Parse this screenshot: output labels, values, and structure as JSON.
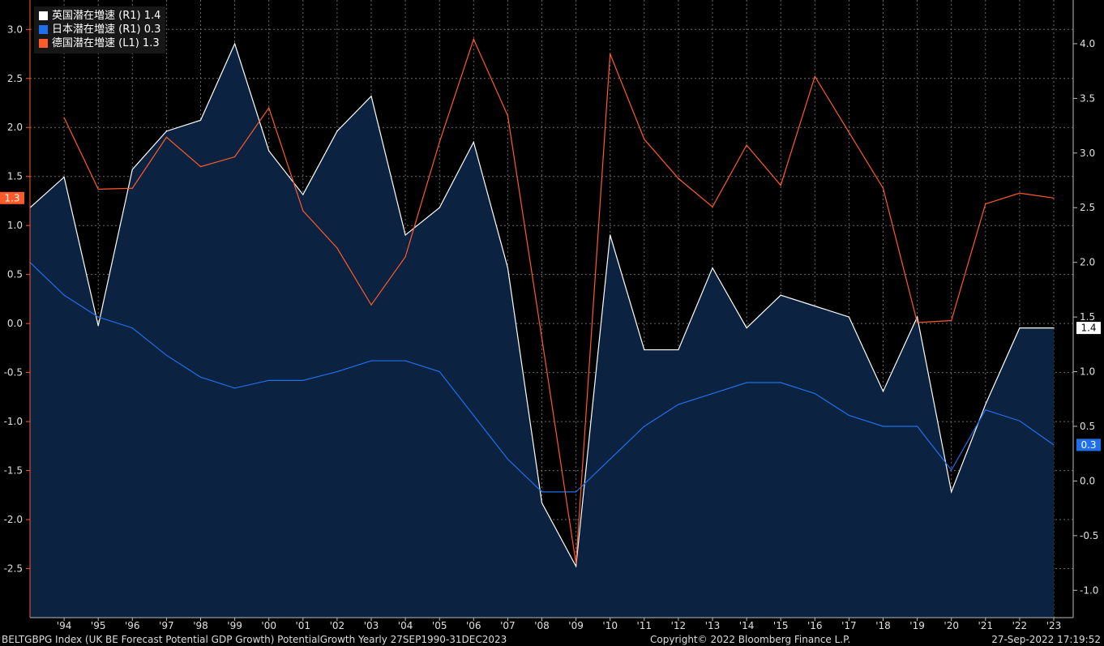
{
  "chart_data": {
    "type": "line",
    "categories": [
      "'94",
      "'95",
      "'96",
      "'97",
      "'98",
      "'99",
      "'00",
      "'01",
      "'02",
      "'03",
      "'04",
      "'05",
      "'06",
      "'07",
      "'08",
      "'09",
      "'10",
      "'11",
      "'12",
      "'13",
      "'14",
      "'15",
      "'16",
      "'17",
      "'18",
      "'19",
      "'20",
      "'21",
      "'22",
      "'23"
    ],
    "left_axis": {
      "ticks": [
        "3.0",
        "2.5",
        "2.0",
        "1.5",
        "1.0",
        "0.5",
        "0.0",
        "-0.5",
        "-1.0",
        "-1.5",
        "-2.0",
        "-2.5"
      ],
      "min": -3.0,
      "max": 3.3
    },
    "right_axis": {
      "ticks": [
        "4.0",
        "3.5",
        "3.0",
        "2.5",
        "2.0",
        "1.5",
        "1.0",
        "0.5",
        "0.0",
        "-0.5",
        "-1.0"
      ],
      "min": -1.25,
      "max": 4.4
    },
    "series": [
      {
        "name": "英国潜在増速",
        "axis": "R1",
        "last": "1.4",
        "color": "#ffffff",
        "fill": "#0b2240",
        "x": [
          1993,
          1994,
          1995,
          1996,
          1997,
          1998,
          1999,
          2000,
          2001,
          2002,
          2003,
          2004,
          2005,
          2006,
          2007,
          2008,
          2009,
          2010,
          2011,
          2012,
          2013,
          2014,
          2015,
          2016,
          2017,
          2018,
          2019,
          2020,
          2021,
          2022,
          2023
        ],
        "values": [
          2.5,
          2.78,
          1.42,
          2.85,
          3.2,
          3.3,
          4.0,
          3.02,
          2.62,
          3.2,
          3.52,
          2.25,
          2.5,
          3.1,
          1.95,
          -0.2,
          -0.78,
          2.25,
          1.2,
          1.2,
          1.95,
          1.4,
          1.7,
          1.6,
          1.5,
          0.82,
          1.5,
          -0.1,
          0.7,
          1.4,
          1.4
        ]
      },
      {
        "name": "日本潜在増速",
        "axis": "R1",
        "last": "0.3",
        "color": "#1f6feb",
        "x": [
          1993,
          1994,
          1995,
          1996,
          1997,
          1998,
          1999,
          2000,
          2001,
          2002,
          2003,
          2004,
          2005,
          2006,
          2007,
          2008,
          2009,
          2010,
          2011,
          2012,
          2013,
          2014,
          2015,
          2016,
          2017,
          2018,
          2019,
          2020,
          2021,
          2022,
          2023
        ],
        "values": [
          2.0,
          1.7,
          1.5,
          1.4,
          1.15,
          0.95,
          0.85,
          0.92,
          0.92,
          1.0,
          1.1,
          1.1,
          1.0,
          0.6,
          0.2,
          -0.1,
          -0.1,
          0.2,
          0.5,
          0.7,
          0.8,
          0.9,
          0.9,
          0.8,
          0.6,
          0.5,
          0.5,
          0.1,
          0.65,
          0.55,
          0.33
        ]
      },
      {
        "name": "德国潜在増速",
        "axis": "L1",
        "last": "1.3",
        "color": "#ff5a2a",
        "x": [
          1994,
          1995,
          1996,
          1997,
          1998,
          1999,
          2000,
          2001,
          2002,
          2003,
          2004,
          2005,
          2006,
          2007,
          2008,
          2009,
          2010,
          2011,
          2012,
          2013,
          2014,
          2015,
          2016,
          2017,
          2018,
          2019,
          2020,
          2021,
          2022,
          2023
        ],
        "values": [
          2.1,
          1.37,
          1.38,
          1.9,
          1.6,
          1.7,
          2.2,
          1.15,
          0.77,
          0.19,
          0.68,
          1.85,
          2.9,
          2.12,
          -0.15,
          -2.45,
          2.75,
          1.88,
          1.48,
          1.19,
          1.82,
          1.41,
          2.52,
          1.95,
          1.38,
          0.01,
          0.03,
          1.22,
          1.33,
          1.28
        ]
      }
    ]
  },
  "legend": [
    {
      "label": "英国潜在増速 (R1) 1.4",
      "color": "#ffffff"
    },
    {
      "label": "日本潜在増速 (R1) 0.3",
      "color": "#1f6feb"
    },
    {
      "label": "德国潜在増速 (L1) 1.3",
      "color": "#ff5a2a"
    }
  ],
  "footer": {
    "left": "BELTGBPG Index (UK BE Forecast Potential GDP Growth) PotentialGrowth  Yearly 27SEP1990-31DEC2023",
    "center": "Copyright© 2022 Bloomberg Finance L.P.",
    "right": "27-Sep-2022 17:19:52"
  }
}
